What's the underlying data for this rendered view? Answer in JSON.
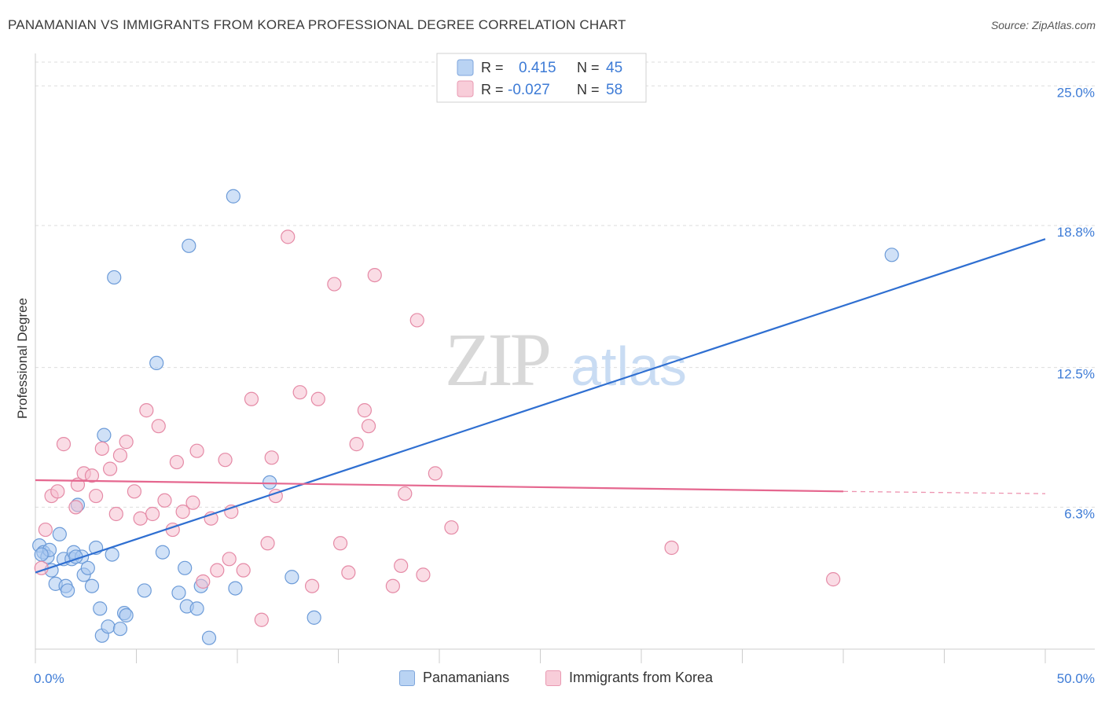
{
  "title": "PANAMANIAN VS IMMIGRANTS FROM KOREA PROFESSIONAL DEGREE CORRELATION CHART",
  "source": "Source: ZipAtlas.com",
  "watermark": {
    "zip": "ZIP",
    "atlas": "atlas"
  },
  "colors": {
    "blue_fill": "#a9c8f0",
    "blue_stroke": "#6c9bd8",
    "blue_line": "#2f6fd1",
    "pink_fill": "#f6c0d0",
    "pink_stroke": "#e58aa6",
    "pink_line": "#e5678f",
    "accent_text": "#3d7bd6",
    "grid": "#dddddd"
  },
  "legend": {
    "rows": [
      {
        "r_label": "R =",
        "r_value": "0.415",
        "n_label": "N =",
        "n_value": "45"
      },
      {
        "r_label": "R =",
        "r_value": "-0.027",
        "n_label": "N =",
        "n_value": "58"
      }
    ]
  },
  "chart_data": {
    "type": "scatter",
    "title": "PANAMANIAN VS IMMIGRANTS FROM KOREA PROFESSIONAL DEGREE CORRELATION CHART",
    "xlabel": "",
    "ylabel": "Professional Degree",
    "xlim": [
      0,
      50
    ],
    "ylim": [
      0,
      26.3
    ],
    "x_tick_labels": [
      "0.0%",
      "50.0%"
    ],
    "y_ticks": [
      6.3,
      12.5,
      18.8,
      25.0
    ],
    "y_tick_labels": [
      "6.3%",
      "12.5%",
      "18.8%",
      "25.0%"
    ],
    "grid": true,
    "series": [
      {
        "name": "Panamanians",
        "color": "blue",
        "r": 0.415,
        "n": 45,
        "trend": {
          "x0": 0,
          "y0": 3.4,
          "x1": 50,
          "y1": 18.2
        },
        "points": [
          [
            0.2,
            4.6
          ],
          [
            0.4,
            4.3
          ],
          [
            0.6,
            4.1
          ],
          [
            0.7,
            4.4
          ],
          [
            0.8,
            3.5
          ],
          [
            1.0,
            2.9
          ],
          [
            1.2,
            5.1
          ],
          [
            1.4,
            4.0
          ],
          [
            1.5,
            2.8
          ],
          [
            1.6,
            2.6
          ],
          [
            1.8,
            4.0
          ],
          [
            1.9,
            4.3
          ],
          [
            2.1,
            6.4
          ],
          [
            2.3,
            4.1
          ],
          [
            2.4,
            3.3
          ],
          [
            2.6,
            3.6
          ],
          [
            2.8,
            2.8
          ],
          [
            3.0,
            4.5
          ],
          [
            3.2,
            1.8
          ],
          [
            3.3,
            0.6
          ],
          [
            3.4,
            9.5
          ],
          [
            3.6,
            1.0
          ],
          [
            3.8,
            4.2
          ],
          [
            3.9,
            16.5
          ],
          [
            4.2,
            0.9
          ],
          [
            4.4,
            1.6
          ],
          [
            4.5,
            1.5
          ],
          [
            5.4,
            2.6
          ],
          [
            6.0,
            12.7
          ],
          [
            6.3,
            4.3
          ],
          [
            7.1,
            2.5
          ],
          [
            7.4,
            3.6
          ],
          [
            7.5,
            1.9
          ],
          [
            7.6,
            17.9
          ],
          [
            8.0,
            1.8
          ],
          [
            8.2,
            2.8
          ],
          [
            8.6,
            0.5
          ],
          [
            9.8,
            20.1
          ],
          [
            9.9,
            2.7
          ],
          [
            11.6,
            7.4
          ],
          [
            12.7,
            3.2
          ],
          [
            13.8,
            1.4
          ],
          [
            42.4,
            17.5
          ],
          [
            0.3,
            4.2
          ],
          [
            2.0,
            4.1
          ]
        ]
      },
      {
        "name": "Immigrants from Korea",
        "color": "pink",
        "r": -0.027,
        "n": 58,
        "trend": {
          "x0": 0,
          "y0": 7.5,
          "x1": 40,
          "y1": 7.0
        },
        "trend_dashed_to": {
          "x": 50,
          "y": 6.9
        },
        "points": [
          [
            0.3,
            3.6
          ],
          [
            0.5,
            5.3
          ],
          [
            0.8,
            6.8
          ],
          [
            1.1,
            7.0
          ],
          [
            1.4,
            9.1
          ],
          [
            2.0,
            6.3
          ],
          [
            2.1,
            7.3
          ],
          [
            2.4,
            7.8
          ],
          [
            2.8,
            7.7
          ],
          [
            3.0,
            6.8
          ],
          [
            3.3,
            8.9
          ],
          [
            3.7,
            8.0
          ],
          [
            4.0,
            6.0
          ],
          [
            4.2,
            8.6
          ],
          [
            4.5,
            9.2
          ],
          [
            4.9,
            7.0
          ],
          [
            5.2,
            5.8
          ],
          [
            5.5,
            10.6
          ],
          [
            5.8,
            6.0
          ],
          [
            6.1,
            9.9
          ],
          [
            6.4,
            6.6
          ],
          [
            6.8,
            5.3
          ],
          [
            7.0,
            8.3
          ],
          [
            7.3,
            6.1
          ],
          [
            7.8,
            6.5
          ],
          [
            8.0,
            8.8
          ],
          [
            8.3,
            3.0
          ],
          [
            8.7,
            5.8
          ],
          [
            9.0,
            3.5
          ],
          [
            9.4,
            8.4
          ],
          [
            9.7,
            6.1
          ],
          [
            9.6,
            4.0
          ],
          [
            10.3,
            3.5
          ],
          [
            10.7,
            11.1
          ],
          [
            11.2,
            1.3
          ],
          [
            11.5,
            4.7
          ],
          [
            11.7,
            8.5
          ],
          [
            11.9,
            6.8
          ],
          [
            12.5,
            18.3
          ],
          [
            13.1,
            11.4
          ],
          [
            13.7,
            2.8
          ],
          [
            14.0,
            11.1
          ],
          [
            14.8,
            16.2
          ],
          [
            15.1,
            4.7
          ],
          [
            15.5,
            3.4
          ],
          [
            15.9,
            9.1
          ],
          [
            16.3,
            10.6
          ],
          [
            16.5,
            9.9
          ],
          [
            16.8,
            16.6
          ],
          [
            17.7,
            2.8
          ],
          [
            18.1,
            3.7
          ],
          [
            18.3,
            6.9
          ],
          [
            18.9,
            14.6
          ],
          [
            19.2,
            3.3
          ],
          [
            19.8,
            7.8
          ],
          [
            20.6,
            5.4
          ],
          [
            31.5,
            4.5
          ],
          [
            39.5,
            3.1
          ]
        ]
      }
    ]
  },
  "bottom_legend": {
    "items": [
      "Panamanians",
      "Immigrants from Korea"
    ]
  }
}
